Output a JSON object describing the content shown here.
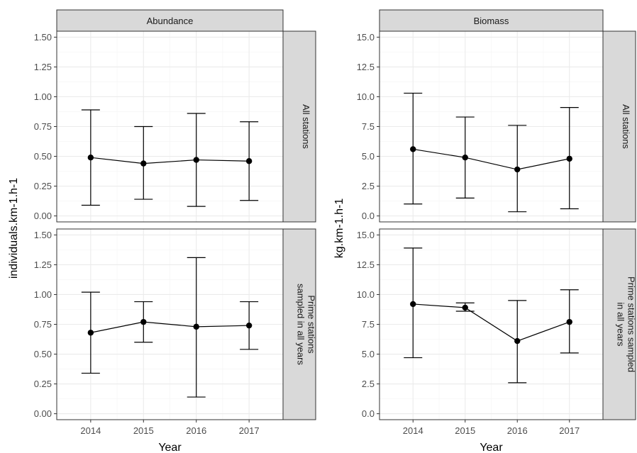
{
  "chart_data": {
    "type": "line",
    "x_values": [
      "2014",
      "2015",
      "2016",
      "2017"
    ],
    "xlabel": "Year",
    "row_labels": [
      {
        "lines": [
          "All stations"
        ]
      },
      {
        "lines": [
          "Prime stations",
          "sampled in all years"
        ]
      },
      {
        "lines": [
          "Prime stations sampled",
          "in all years"
        ]
      }
    ],
    "columns": [
      {
        "title": "Abundance",
        "ylabel": "individuals.km-1.h-1",
        "ylim": [
          -0.05,
          1.55
        ],
        "yticks": [
          "0.00",
          "0.25",
          "0.50",
          "0.75",
          "1.00",
          "1.25",
          "1.50"
        ],
        "ytick_values": [
          0,
          0.25,
          0.5,
          0.75,
          1.0,
          1.25,
          1.5
        ],
        "panels": [
          {
            "row_label_index": 0,
            "means": [
              0.49,
              0.44,
              0.47,
              0.46
            ],
            "lower": [
              0.09,
              0.14,
              0.08,
              0.13
            ],
            "upper": [
              0.89,
              0.75,
              0.86,
              0.79
            ]
          },
          {
            "row_label_index": 1,
            "means": [
              0.68,
              0.77,
              0.73,
              0.74
            ],
            "lower": [
              0.34,
              0.6,
              0.14,
              0.54
            ],
            "upper": [
              1.02,
              0.94,
              1.31,
              0.94
            ]
          }
        ]
      },
      {
        "title": "Biomass",
        "ylabel": "kg.km-1.h-1",
        "ylim": [
          -0.5,
          15.5
        ],
        "yticks": [
          "0.0",
          "2.5",
          "5.0",
          "7.5",
          "10.0",
          "12.5",
          "15.0"
        ],
        "ytick_values": [
          0,
          2.5,
          5.0,
          7.5,
          10.0,
          12.5,
          15.0
        ],
        "panels": [
          {
            "row_label_index": 0,
            "means": [
              5.6,
              4.9,
              3.9,
              4.8
            ],
            "lower": [
              1.0,
              1.5,
              0.35,
              0.6
            ],
            "upper": [
              10.3,
              8.3,
              7.6,
              9.1
            ]
          },
          {
            "row_label_index": 2,
            "means": [
              9.2,
              8.9,
              6.1,
              7.7
            ],
            "lower": [
              4.7,
              8.6,
              2.6,
              5.1
            ],
            "upper": [
              13.9,
              9.3,
              9.5,
              10.4
            ]
          }
        ]
      }
    ],
    "grid": true,
    "legend": "none"
  }
}
